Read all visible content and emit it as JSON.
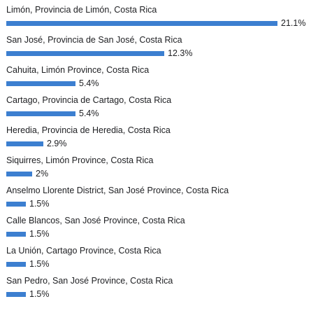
{
  "colors": {
    "bar": "#3c7fd0",
    "text": "#202124"
  },
  "max_bar_percent": 21.1,
  "items": [
    {
      "label": "Limón, Provincia de Limón, Costa Rica",
      "value": 21.1,
      "percent": "21.1%"
    },
    {
      "label": "San José, Provincia de San José, Costa Rica",
      "value": 12.3,
      "percent": "12.3%"
    },
    {
      "label": "Cahuita, Limón Province, Costa Rica",
      "value": 5.4,
      "percent": "5.4%"
    },
    {
      "label": "Cartago, Provincia de Cartago, Costa Rica",
      "value": 5.4,
      "percent": "5.4%"
    },
    {
      "label": "Heredia, Provincia de Heredia, Costa Rica",
      "value": 2.9,
      "percent": "2.9%"
    },
    {
      "label": "Siquirres, Limón Province, Costa Rica",
      "value": 2,
      "percent": "2%"
    },
    {
      "label": "Anselmo Llorente District, San José Province, Costa Rica",
      "value": 1.5,
      "percent": "1.5%"
    },
    {
      "label": "Calle Blancos, San José Province, Costa Rica",
      "value": 1.5,
      "percent": "1.5%"
    },
    {
      "label": "La Unión, Cartago Province, Costa Rica",
      "value": 1.5,
      "percent": "1.5%"
    },
    {
      "label": "San Pedro, San José Province, Costa Rica",
      "value": 1.5,
      "percent": "1.5%"
    }
  ]
}
